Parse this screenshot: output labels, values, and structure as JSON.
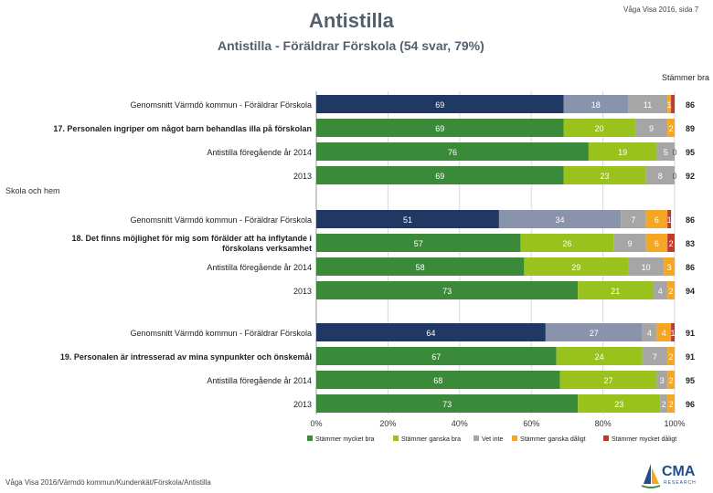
{
  "header": {
    "title": "Antistilla",
    "subtitle": "Antistilla - Föräldrar Förskola (54 svar, 79%)",
    "page_info": "Våga Visa 2016, sida 7",
    "agree_header": "Stämmer bra"
  },
  "footer": {
    "text": "Våga Visa 2016/Värmdö kommun/Kundenkät/Förskola/Antistilla"
  },
  "logo": {
    "text": "CMA",
    "sub": "RESEARCH"
  },
  "colors": {
    "dark_blue": "#1f3864",
    "grey_blue": "#8a93ac",
    "green": "#3a8a3a",
    "light_green": "#99c31c",
    "grey": "#a6a6a6",
    "orange": "#f5a623",
    "red": "#c0392b"
  },
  "chart_data": {
    "type": "bar",
    "orientation": "horizontal-stacked-100",
    "xlim": [
      0,
      100
    ],
    "xticks": [
      "0%",
      "20%",
      "40%",
      "60%",
      "80%",
      "100%"
    ],
    "legend": [
      "Stämmer mycket bra",
      "Stämmer ganska bra",
      "Vet inte",
      "Stämmer ganska dåligt",
      "Stämmer mycket dåligt"
    ],
    "section_label": "Skola och hem",
    "groups": [
      {
        "rows": [
          {
            "label": "Genomsnitt Värmdö kommun - Föräldrar Förskola",
            "bold": false,
            "benchmark": true,
            "values": [
              69,
              18,
              11,
              1,
              1
            ],
            "shown": [
              "69",
              "18",
              "11",
              "1",
              ""
            ],
            "agree": "86"
          },
          {
            "label": "17. Personalen ingriper om något barn behandlas illa på förskolan",
            "bold": true,
            "benchmark": false,
            "values": [
              69,
              20,
              9,
              2,
              0
            ],
            "shown": [
              "69",
              "20",
              "9",
              "2",
              ""
            ],
            "agree": "89"
          },
          {
            "label": "Antistilla föregående år 2014",
            "bold": false,
            "benchmark": false,
            "values": [
              76,
              19,
              5,
              0,
              0
            ],
            "shown": [
              "76",
              "19",
              "5",
              "0",
              ""
            ],
            "agree": "95"
          },
          {
            "label": "2013",
            "bold": false,
            "benchmark": false,
            "values": [
              69,
              23,
              8,
              0,
              0
            ],
            "shown": [
              "69",
              "23",
              "8",
              "0",
              ""
            ],
            "agree": "92"
          }
        ]
      },
      {
        "rows": [
          {
            "label": "Genomsnitt Värmdö kommun - Föräldrar Förskola",
            "bold": false,
            "benchmark": true,
            "values": [
              51,
              34,
              7,
              6,
              1
            ],
            "shown": [
              "51",
              "34",
              "7",
              "6",
              "1"
            ],
            "agree": "86"
          },
          {
            "label": "18. Det finns möjlighet för mig som förälder att ha inflytande i förskolans verksamhet",
            "bold": true,
            "benchmark": false,
            "values": [
              57,
              26,
              9,
              6,
              2
            ],
            "shown": [
              "57",
              "26",
              "9",
              "6",
              "2"
            ],
            "agree": "83"
          },
          {
            "label": "Antistilla föregående år 2014",
            "bold": false,
            "benchmark": false,
            "values": [
              58,
              29,
              10,
              3,
              0
            ],
            "shown": [
              "58",
              "29",
              "10",
              "3",
              ""
            ],
            "agree": "86"
          },
          {
            "label": "2013",
            "bold": false,
            "benchmark": false,
            "values": [
              73,
              21,
              4,
              2,
              0
            ],
            "shown": [
              "73",
              "21",
              "4",
              "2",
              ""
            ],
            "agree": "94"
          }
        ]
      },
      {
        "rows": [
          {
            "label": "Genomsnitt Värmdö kommun - Föräldrar Förskola",
            "bold": false,
            "benchmark": true,
            "values": [
              64,
              27,
              4,
              4,
              1
            ],
            "shown": [
              "64",
              "27",
              "4",
              "4",
              "1"
            ],
            "agree": "91"
          },
          {
            "label": "19. Personalen är intresserad av mina synpunkter och önskemål",
            "bold": true,
            "benchmark": false,
            "values": [
              67,
              24,
              7,
              2,
              0
            ],
            "shown": [
              "67",
              "24",
              "7",
              "2",
              ""
            ],
            "agree": "91"
          },
          {
            "label": "Antistilla föregående år 2014",
            "bold": false,
            "benchmark": false,
            "values": [
              68,
              27,
              3,
              2,
              0
            ],
            "shown": [
              "68",
              "27",
              "3",
              "2",
              ""
            ],
            "agree": "95"
          },
          {
            "label": "2013",
            "bold": false,
            "benchmark": false,
            "values": [
              73,
              23,
              2,
              2,
              0
            ],
            "shown": [
              "73",
              "23",
              "2",
              "2",
              ""
            ],
            "agree": "96"
          }
        ]
      }
    ]
  }
}
